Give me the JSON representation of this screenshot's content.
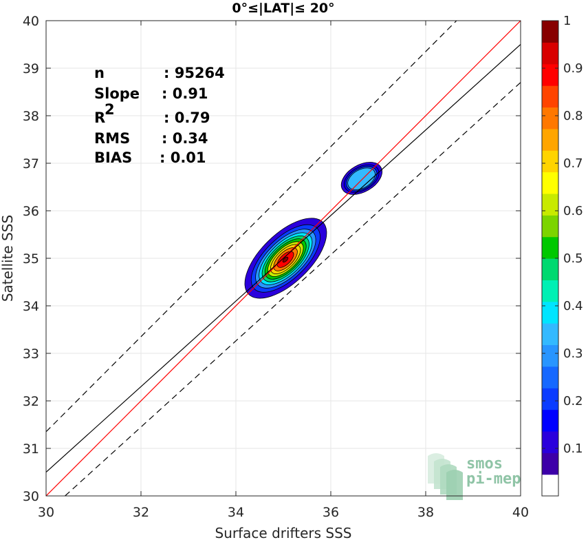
{
  "chart_data": {
    "type": "contour",
    "title": "0°≤|LAT|≤ 20°",
    "xlabel": "Surface drifters SSS",
    "ylabel": "Satellite SSS",
    "xlim": [
      30,
      40
    ],
    "ylim": [
      30,
      40
    ],
    "xticks": [
      "30",
      "32",
      "34",
      "36",
      "38",
      "40"
    ],
    "yticks": [
      "30",
      "31",
      "32",
      "33",
      "34",
      "35",
      "36",
      "37",
      "38",
      "39",
      "40"
    ],
    "stats": [
      {
        "key": "n",
        "value": ": 95264"
      },
      {
        "key": "Slope",
        "value": ": 0.91"
      },
      {
        "key": "R",
        "sup": "2",
        "value": ": 0.79"
      },
      {
        "key": "RMS",
        "value": ": 0.34"
      },
      {
        "key": "BIAS",
        "value": ": 0.01"
      }
    ],
    "lines": [
      {
        "name": "identity",
        "color": "#ff0000",
        "dash": false,
        "x": [
          30,
          40
        ],
        "y": [
          30,
          40
        ]
      },
      {
        "name": "regression",
        "color": "#000000",
        "dash": false,
        "x": [
          30,
          40
        ],
        "y": [
          30.5,
          39.5
        ]
      },
      {
        "name": "upper-bound",
        "color": "#000000",
        "dash": true,
        "x": [
          30,
          40
        ],
        "y": [
          31.35,
          41.35
        ]
      },
      {
        "name": "lower-bound",
        "color": "#000000",
        "dash": true,
        "x": [
          30.4,
          40
        ],
        "y": [
          30,
          38.7
        ]
      }
    ],
    "density_blobs": [
      {
        "cx": 35.05,
        "cy": 35.0,
        "sx": 0.55,
        "sy": 0.26,
        "angle_deg": 44,
        "levels": 11,
        "peak": 1.0
      },
      {
        "cx": 36.65,
        "cy": 36.68,
        "sx": 0.23,
        "sy": 0.14,
        "angle_deg": 30,
        "levels": 4,
        "peak": 0.32
      }
    ],
    "colorbar": {
      "min": 0,
      "max": 1,
      "ticks": [
        "0.1",
        "0.2",
        "0.3",
        "0.4",
        "0.5",
        "0.6",
        "0.7",
        "0.8",
        "0.9",
        "1"
      ],
      "colors": [
        "#ffffff",
        "#3d00a8",
        "#2a00dc",
        "#0000ff",
        "#0a3cff",
        "#1568ff",
        "#2895ff",
        "#33b9ff",
        "#00e5ff",
        "#00f0b4",
        "#00d970",
        "#00c800",
        "#7cd400",
        "#c8ea00",
        "#ffff00",
        "#ffd400",
        "#ffa500",
        "#ff7800",
        "#ff4400",
        "#ff0000",
        "#d80000",
        "#870000"
      ]
    },
    "grid": true
  },
  "logo": {
    "line1": "smos",
    "line2": "pi-mep"
  }
}
